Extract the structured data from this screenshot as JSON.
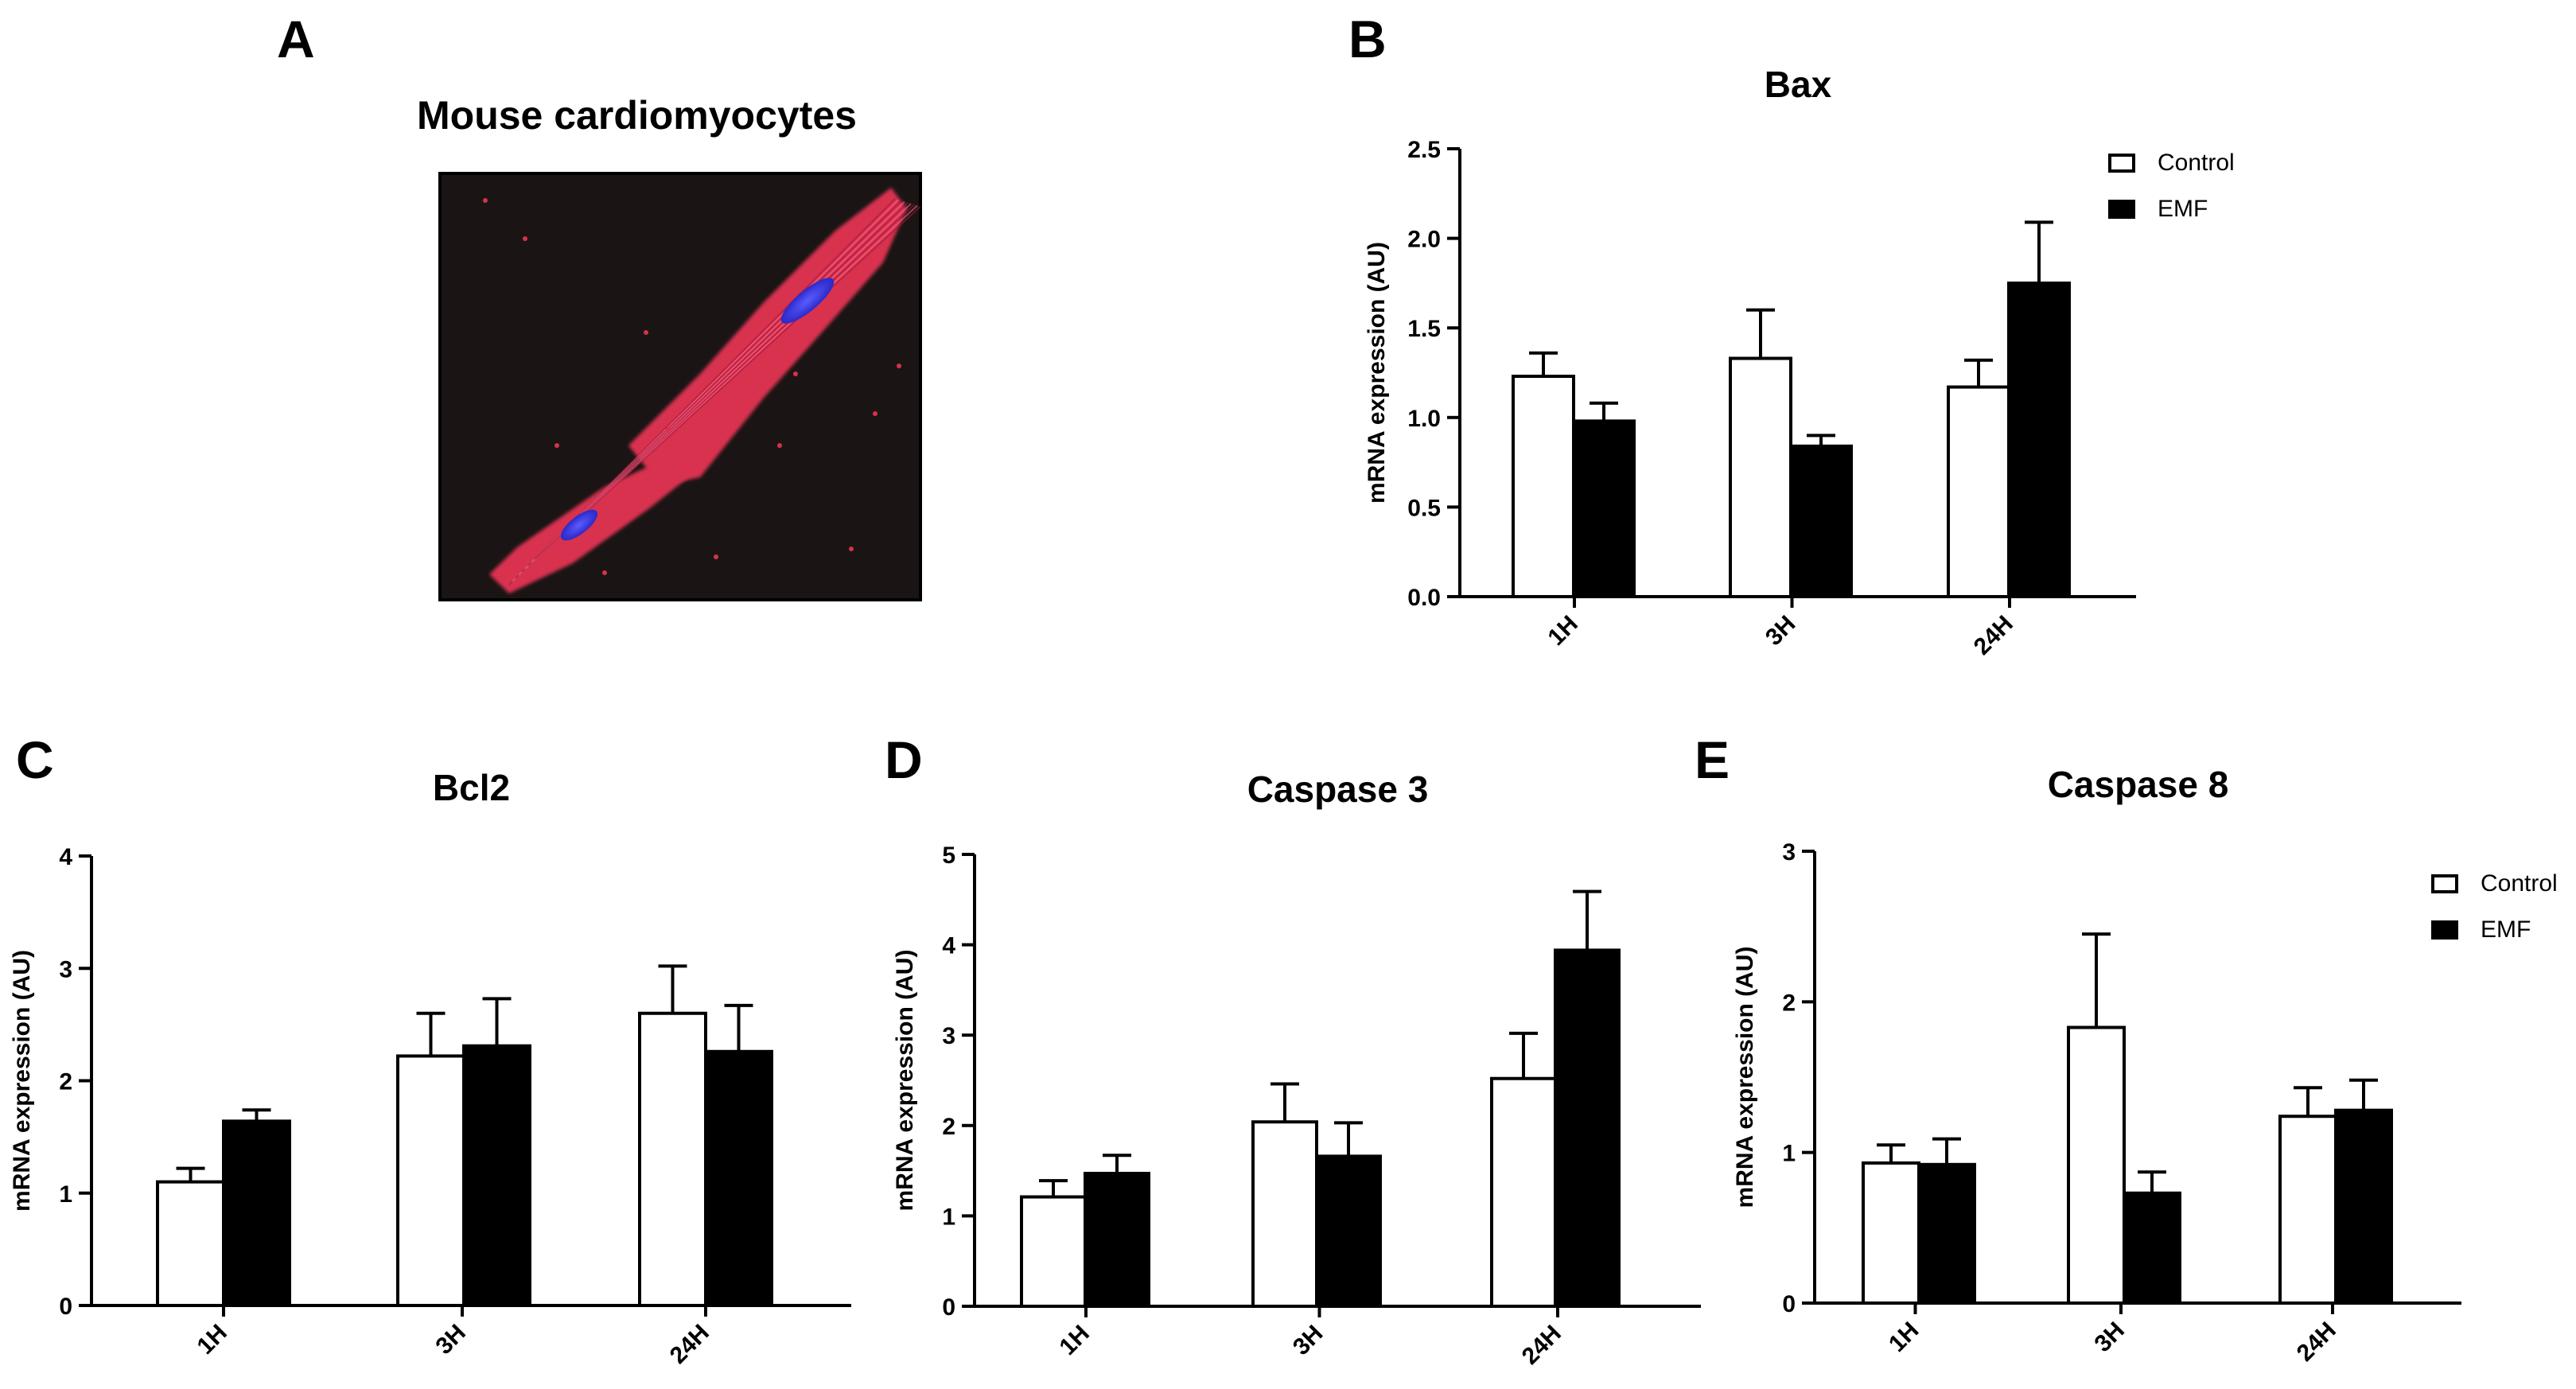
{
  "figure": {
    "panel_a": {
      "letter": "A",
      "title": "Mouse cardiomyocytes",
      "image": "fluorescence-micrograph-cardiomyocytes",
      "colors": {
        "background": "#1a1514",
        "membrane": "#d8304f",
        "nucleus": "#3a38e8"
      }
    }
  },
  "legend": {
    "control": "Control",
    "emf": "EMF"
  },
  "colors": {
    "control": "#ffffff",
    "emf": "#000000",
    "stroke": "#000000"
  },
  "chart_data": [
    {
      "id": "B",
      "letter": "B",
      "type": "bar",
      "title": "Bax",
      "xlabel": "",
      "ylabel": "mRNA expression (AU)",
      "categories": [
        "1H",
        "3H",
        "24H"
      ],
      "ylim": [
        0,
        2.5
      ],
      "yticks": [
        0.0,
        0.5,
        1.0,
        1.5,
        2.0,
        2.5
      ],
      "ytick_labels": [
        "0.0",
        "0.5",
        "1.0",
        "1.5",
        "2.0",
        "2.5"
      ],
      "legend": true,
      "series": [
        {
          "name": "Control",
          "values": [
            1.23,
            1.33,
            1.17
          ],
          "errors": [
            0.13,
            0.27,
            0.15
          ]
        },
        {
          "name": "EMF",
          "values": [
            0.98,
            0.84,
            1.75
          ],
          "errors": [
            0.1,
            0.06,
            0.34
          ]
        }
      ]
    },
    {
      "id": "C",
      "letter": "C",
      "type": "bar",
      "title": "Bcl2",
      "xlabel": "",
      "ylabel": "mRNA expression (AU)",
      "categories": [
        "1H",
        "3H",
        "24H"
      ],
      "ylim": [
        0,
        4
      ],
      "yticks": [
        0,
        1,
        2,
        3,
        4
      ],
      "ytick_labels": [
        "0",
        "1",
        "2",
        "3",
        "4"
      ],
      "legend": false,
      "series": [
        {
          "name": "Control",
          "values": [
            1.1,
            2.22,
            2.6
          ],
          "errors": [
            0.12,
            0.38,
            0.42
          ]
        },
        {
          "name": "EMF",
          "values": [
            1.64,
            2.31,
            2.26
          ],
          "errors": [
            0.1,
            0.42,
            0.41
          ]
        }
      ]
    },
    {
      "id": "D",
      "letter": "D",
      "type": "bar",
      "title": "Caspase 3",
      "xlabel": "",
      "ylabel": "mRNA expression (AU)",
      "categories": [
        "1H",
        "3H",
        "24H"
      ],
      "ylim": [
        0,
        5
      ],
      "yticks": [
        0,
        1,
        2,
        3,
        4,
        5
      ],
      "ytick_labels": [
        "0",
        "1",
        "2",
        "3",
        "4",
        "5"
      ],
      "legend": false,
      "series": [
        {
          "name": "Control",
          "values": [
            1.21,
            2.04,
            2.52
          ],
          "errors": [
            0.18,
            0.42,
            0.5
          ]
        },
        {
          "name": "EMF",
          "values": [
            1.47,
            1.66,
            3.94
          ],
          "errors": [
            0.2,
            0.37,
            0.65
          ]
        }
      ]
    },
    {
      "id": "E",
      "letter": "E",
      "type": "bar",
      "title": "Caspase 8",
      "xlabel": "",
      "ylabel": "mRNA expression (AU)",
      "categories": [
        "1H",
        "3H",
        "24H"
      ],
      "ylim": [
        0,
        3
      ],
      "yticks": [
        0,
        1,
        2,
        3
      ],
      "ytick_labels": [
        "0",
        "1",
        "2",
        "3"
      ],
      "legend": true,
      "series": [
        {
          "name": "Control",
          "values": [
            0.93,
            1.83,
            1.24
          ],
          "errors": [
            0.12,
            0.62,
            0.19
          ]
        },
        {
          "name": "EMF",
          "values": [
            0.92,
            0.73,
            1.28
          ],
          "errors": [
            0.17,
            0.14,
            0.2
          ]
        }
      ]
    }
  ]
}
